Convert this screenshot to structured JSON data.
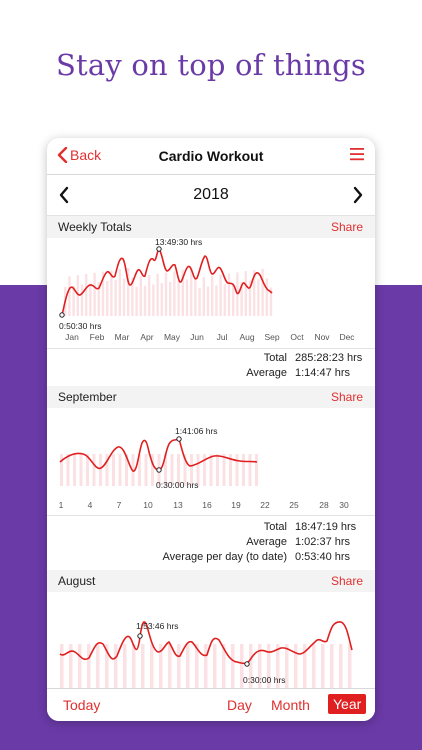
{
  "headline": "Stay on top of things",
  "nav": {
    "back_label": "Back",
    "title": "Cardio Workout"
  },
  "year": "2018",
  "colors": {
    "accent": "#e03030",
    "purple": "#6a3aa7"
  },
  "weekly": {
    "label": "Weekly Totals",
    "share": "Share",
    "max_label": "13:49:30 hrs",
    "min_label": "0:50:30 hrs",
    "months": [
      "Jan",
      "Feb",
      "Mar",
      "Apr",
      "May",
      "Jun",
      "Jul",
      "Aug",
      "Sep",
      "Oct",
      "Nov",
      "Dec"
    ],
    "total_label": "Total",
    "total_value": "285:28:23 hrs",
    "average_label": "Average",
    "average_value": "1:14:47 hrs"
  },
  "september": {
    "label": "September",
    "share": "Share",
    "max_label": "1:41:06 hrs",
    "min_label": "0:30:00 hrs",
    "days": [
      "1",
      "4",
      "7",
      "10",
      "13",
      "16",
      "19",
      "22",
      "25",
      "28",
      "30"
    ],
    "total_label": "Total",
    "total_value": "18:47:19 hrs",
    "average_label": "Average",
    "average_value": "1:02:37 hrs",
    "avg_day_label": "Average per day (to date)",
    "avg_day_value": "0:53:40 hrs"
  },
  "august": {
    "label": "August",
    "share": "Share",
    "max_label": "1:53:46 hrs",
    "min_label": "0:30:00 hrs"
  },
  "tabs": {
    "today": "Today",
    "day": "Day",
    "month": "Month",
    "year": "Year"
  }
}
